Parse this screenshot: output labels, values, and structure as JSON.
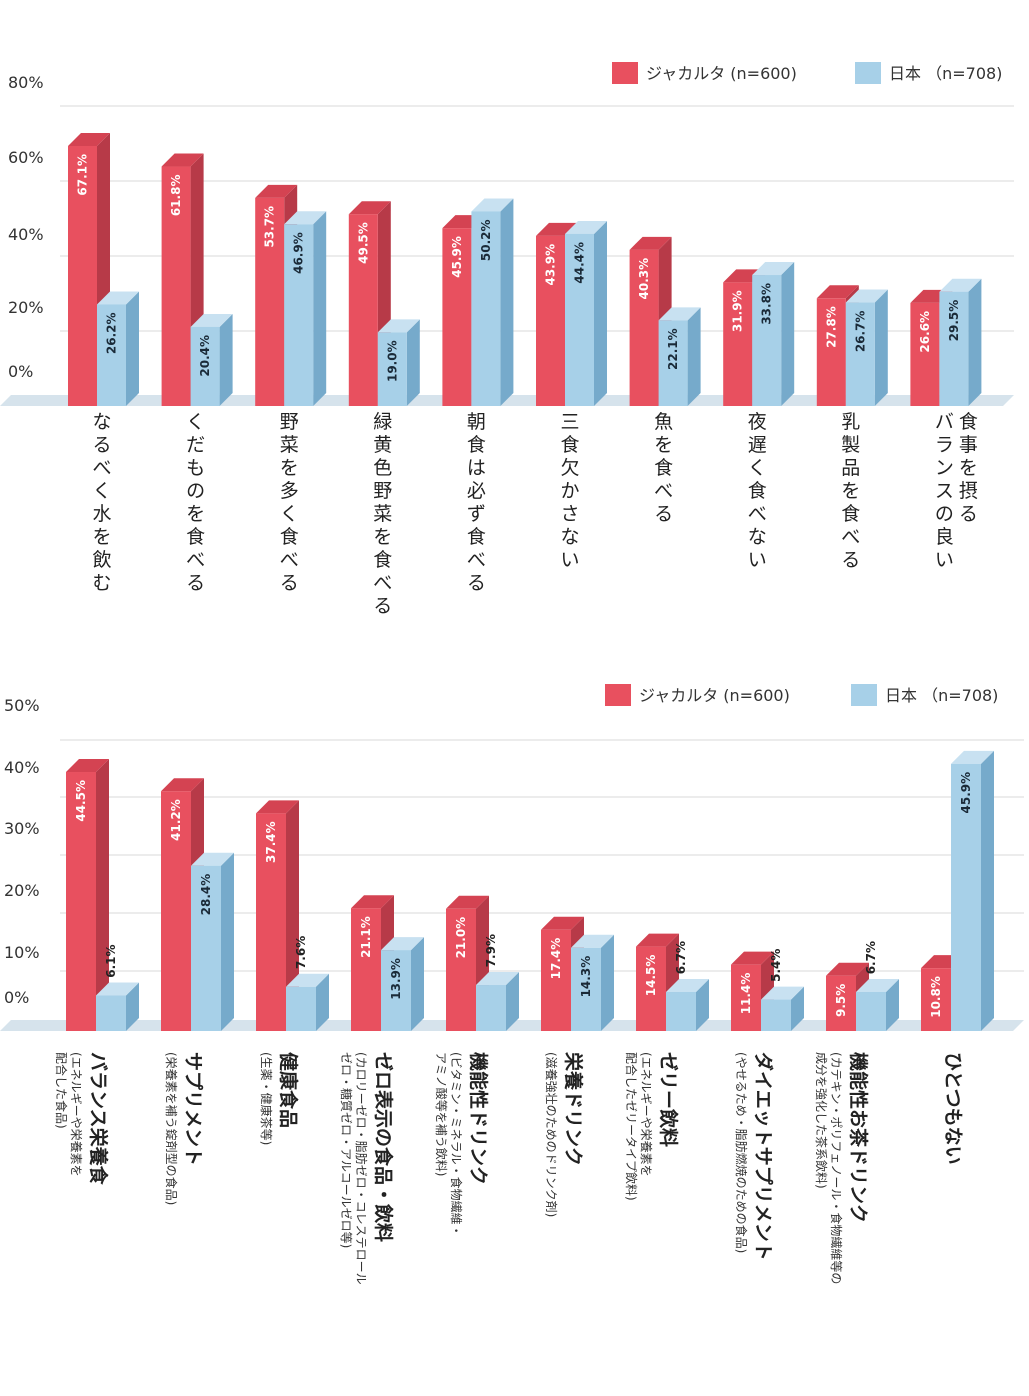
{
  "colors": {
    "jakarta_front": "#e8505f",
    "jakarta_side": "#b73a48",
    "jakarta_top": "#d44352",
    "japan_front": "#a7d0e8",
    "japan_side": "#76aacb",
    "japan_top": "#c8e1f1",
    "floor": "#d6e3ec",
    "grid": "#d9d9d9"
  },
  "chart_data": [
    {
      "type": "bar",
      "legend_placement": "top-right",
      "grid": true,
      "ylim": [
        0,
        80
      ],
      "y_ticks": [
        "0%",
        "20%",
        "40%",
        "60%",
        "80%"
      ],
      "categories": [
        "なるべく水を飲む",
        "くだものを食べる",
        "野菜を多く食べる",
        "緑黄色野菜を食べる",
        "朝食は必ず食べる",
        "三食欠かさない",
        "魚を食べる",
        "夜遅く食べない",
        "乳製品を食べる",
        "バランスの良い\n食事を摂る"
      ],
      "series": [
        {
          "name": "ジャカルタ (n=600)",
          "values": [
            67.1,
            61.8,
            53.7,
            49.5,
            45.9,
            43.9,
            40.3,
            31.9,
            27.8,
            26.6
          ],
          "labels": [
            "67.1%",
            "61.8%",
            "53.7%",
            "49.5%",
            "45.9%",
            "43.9%",
            "40.3%",
            "31.9%",
            "27.8%",
            "26.6%"
          ]
        },
        {
          "name": "日本 （n=708)",
          "values": [
            26.2,
            20.4,
            46.9,
            19.0,
            50.2,
            44.4,
            22.1,
            33.8,
            26.7,
            29.5
          ],
          "labels": [
            "26.2%",
            "20.4%",
            "46.9%",
            "19.0%",
            "50.2%",
            "44.4%",
            "22.1%",
            "33.8%",
            "26.7%",
            "29.5%"
          ]
        }
      ]
    },
    {
      "type": "bar",
      "legend_placement": "top-right",
      "grid": true,
      "ylim": [
        0,
        50
      ],
      "y_ticks": [
        "0%",
        "10%",
        "20%",
        "30%",
        "40%",
        "50%"
      ],
      "categories": [
        {
          "main": "バランス栄養食",
          "sub": "(エネルギーや栄養素を\n配合した食品)"
        },
        {
          "main": "サプリメント",
          "sub": "(栄養素を補う錠剤型の食品)"
        },
        {
          "main": "健康食品",
          "sub": "(生薬・健康茶等)"
        },
        {
          "main": "ゼロ表示の食品・飲料",
          "sub": "(カロリーゼロ・脂肪ゼロ・コレステロール\nゼロ・糖質ゼロ・アルコールゼロ等)"
        },
        {
          "main": "機能性ドリンク",
          "sub": "(ビタミン・ミネラル・食物繊維・\nアミノ酸等を補う飲料)"
        },
        {
          "main": "栄養ドリンク",
          "sub": "(滋養強壮のためのドリンク剤)"
        },
        {
          "main": "ゼリー飲料",
          "sub": "(エネルギーや栄養素を\n配合したゼリータイプ飲料)"
        },
        {
          "main": "ダイエットサプリメント",
          "sub": "(やせるため・脂肪燃焼のための食品)"
        },
        {
          "main": "機能性お茶ドリンク",
          "sub": "(カテキン・ポリフェノール・食物繊維等の\n成分を強化した茶系飲料)"
        },
        {
          "main": "ひとつもない",
          "sub": ""
        }
      ],
      "series": [
        {
          "name": "ジャカルタ (n=600)",
          "values": [
            44.5,
            41.2,
            37.4,
            21.1,
            21.0,
            17.4,
            14.5,
            11.4,
            9.5,
            10.8
          ],
          "labels": [
            "44.5%",
            "41.2%",
            "37.4%",
            "21.1%",
            "21.0%",
            "17.4%",
            "14.5%",
            "11.4%",
            "9.5%",
            "10.8%"
          ]
        },
        {
          "name": "日本 （n=708)",
          "values": [
            6.1,
            28.4,
            7.6,
            13.9,
            7.9,
            14.3,
            6.7,
            5.4,
            6.7,
            45.9
          ],
          "labels": [
            "6.1%",
            "28.4%",
            "7.6%",
            "13.9%",
            "7.9%",
            "14.3%",
            "6.7%",
            "5.4%",
            "6.7%",
            "45.9%"
          ]
        }
      ]
    }
  ]
}
